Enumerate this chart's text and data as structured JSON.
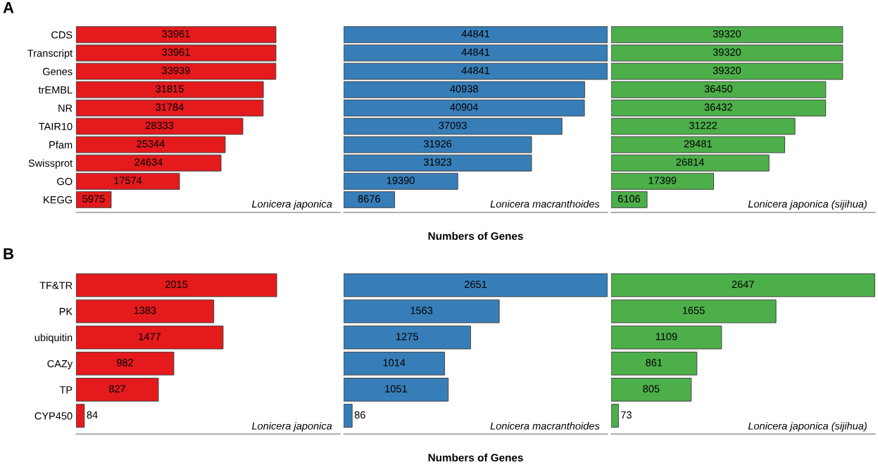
{
  "chart_data": [
    {
      "type": "bar",
      "orientation": "horizontal",
      "title": "A",
      "tick_labels": "y",
      "data_labels": true,
      "grid": false,
      "legend": false,
      "categories": [
        "CDS",
        "Transcript",
        "Genes",
        "trEMBL",
        "NR",
        "TAIR10",
        "Pfam",
        "Swissprot",
        "GO",
        "KEGG"
      ],
      "series": [
        {
          "color": "#e41a1c",
          "values": [
            33961,
            33961,
            33939,
            31815,
            31784,
            28333,
            25344,
            24634,
            17574,
            5975
          ]
        }
      ],
      "annotations": [
        "Lonicera japonica"
      ]
    },
    {
      "type": "bar",
      "orientation": "horizontal",
      "tick_labels": false,
      "data_labels": true,
      "grid": false,
      "legend": false,
      "xlabel": "Numbers of Genes",
      "categories": [
        null,
        null,
        null,
        null,
        null,
        null,
        null,
        null,
        null,
        null
      ],
      "series": [
        {
          "color": "#377eb8",
          "values": [
            44841,
            44841,
            44841,
            40938,
            40904,
            37093,
            31926,
            31923,
            19390,
            8676
          ]
        }
      ],
      "annotations": [
        "Lonicera macranthoides"
      ]
    },
    {
      "type": "bar",
      "orientation": "horizontal",
      "tick_labels": false,
      "data_labels": true,
      "grid": false,
      "legend": false,
      "categories": [
        null,
        null,
        null,
        null,
        null,
        null,
        null,
        null,
        null,
        null
      ],
      "series": [
        {
          "color": "#4daf4a",
          "values": [
            39320,
            39320,
            39320,
            36450,
            36432,
            31222,
            29481,
            26814,
            17399,
            6106
          ]
        }
      ],
      "annotations": [
        "Lonicera japonica (sijihua)"
      ]
    },
    {
      "type": "bar",
      "orientation": "horizontal",
      "title": "B",
      "tick_labels": "y",
      "data_labels": true,
      "grid": false,
      "legend": false,
      "categories": [
        "TF&TR",
        "PK",
        "ubiquitin",
        "CAZy",
        "TP",
        "CYP450"
      ],
      "series": [
        {
          "color": "#e41a1c",
          "values": [
            2015,
            1383,
            1477,
            982,
            827,
            84
          ]
        }
      ],
      "annotations": [
        "Lonicera japonica"
      ]
    },
    {
      "type": "bar",
      "orientation": "horizontal",
      "tick_labels": false,
      "data_labels": true,
      "grid": false,
      "legend": false,
      "xlabel": "Numbers of Genes",
      "categories": [
        null,
        null,
        null,
        null,
        null,
        null
      ],
      "series": [
        {
          "color": "#377eb8",
          "values": [
            2651,
            1563,
            1275,
            1014,
            1051,
            86
          ]
        }
      ],
      "annotations": [
        "Lonicera macranthoides"
      ]
    },
    {
      "type": "bar",
      "orientation": "horizontal",
      "tick_labels": false,
      "data_labels": true,
      "grid": false,
      "legend": false,
      "categories": [
        null,
        null,
        null,
        null,
        null,
        null
      ],
      "series": [
        {
          "color": "#4daf4a",
          "values": [
            2647,
            1655,
            1109,
            861,
            805,
            73
          ]
        }
      ],
      "annotations": [
        "Lonicera japonica (sijihua)"
      ]
    }
  ]
}
